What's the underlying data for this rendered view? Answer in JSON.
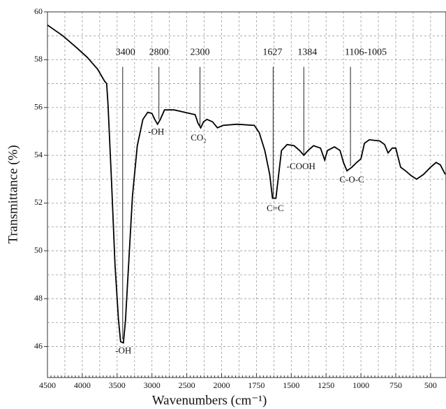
{
  "chart_data": {
    "type": "line",
    "xlabel": "Wavenumbers (cm⁻¹)",
    "ylabel": "Transmittance (%)",
    "xlim": [
      4500,
      390
    ],
    "ylim": [
      44.7,
      60
    ],
    "xticks": [
      4500,
      4000,
      3500,
      3000,
      2500,
      2000,
      1750,
      1500,
      1250,
      1000,
      750,
      500
    ],
    "yticks": [
      46,
      48,
      50,
      52,
      54,
      56,
      58,
      60
    ],
    "grid": true,
    "series": [
      {
        "color": "#000000",
        "x": [
          4500,
          4280,
          4080,
          3930,
          3780,
          3680,
          3650,
          3630,
          3580,
          3530,
          3480,
          3450,
          3410,
          3380,
          3330,
          3280,
          3210,
          3130,
          3060,
          3000,
          2960,
          2920,
          2880,
          2820,
          2680,
          2530,
          2380,
          2340,
          2300,
          2260,
          2210,
          2130,
          2060,
          1990,
          1890,
          1765,
          1730,
          1690,
          1655,
          1635,
          1610,
          1590,
          1570,
          1530,
          1480,
          1440,
          1410,
          1380,
          1340,
          1290,
          1260,
          1240,
          1190,
          1150,
          1125,
          1100,
          1065,
          1030,
          1000,
          975,
          940,
          865,
          830,
          805,
          775,
          750,
          715,
          680,
          640,
          600,
          550,
          500,
          460,
          430,
          395
        ],
        "values": [
          59.45,
          59.0,
          58.5,
          58.1,
          57.6,
          57.1,
          57.0,
          56.1,
          52.9,
          49.4,
          47.1,
          46.2,
          46.15,
          47.1,
          49.7,
          52.3,
          54.4,
          55.5,
          55.8,
          55.75,
          55.5,
          55.3,
          55.5,
          55.9,
          55.9,
          55.8,
          55.7,
          55.35,
          55.15,
          55.4,
          55.5,
          55.4,
          55.15,
          55.25,
          55.3,
          55.25,
          54.95,
          54.2,
          53.2,
          52.2,
          52.2,
          53.2,
          54.2,
          54.45,
          54.4,
          54.2,
          54.0,
          54.2,
          54.4,
          54.3,
          53.8,
          54.2,
          54.35,
          54.2,
          53.7,
          53.35,
          53.5,
          53.7,
          53.85,
          54.5,
          54.65,
          54.6,
          54.45,
          54.1,
          54.3,
          54.3,
          53.5,
          53.35,
          53.15,
          53.0,
          53.2,
          53.5,
          53.7,
          53.6,
          53.2
        ]
      }
    ],
    "peak_marks": [
      {
        "label": "3400",
        "x": 3420,
        "y": 46.3,
        "label_x": 3380
      },
      {
        "label": "2800",
        "x": 2900,
        "y": 55.5,
        "label_x": 2900
      },
      {
        "label": "2300",
        "x": 2310,
        "y": 55.15,
        "label_x": 2310
      },
      {
        "label": "1627",
        "x": 1630,
        "y": 52.2,
        "label_x": 1635
      },
      {
        "label": "1384",
        "x": 1410,
        "y": 54.05,
        "label_x": 1385
      },
      {
        "label": "1106-1005",
        "x": 1075,
        "y": 53.55,
        "label_x": 965
      }
    ],
    "peak_top": 57.7,
    "label_row": 58.3,
    "band_labels": [
      {
        "text": "-OH",
        "x": 3410,
        "y": 45.8
      },
      {
        "text": "-OH",
        "x": 2940,
        "y": 54.95
      },
      {
        "text": "CO₂",
        "x": 2330,
        "y": 54.7
      },
      {
        "text": "C=C",
        "x": 1615,
        "y": 51.75
      },
      {
        "text": "-COOH",
        "x": 1430,
        "y": 53.5
      },
      {
        "text": "C-O-C",
        "x": 1065,
        "y": 52.95
      }
    ]
  }
}
